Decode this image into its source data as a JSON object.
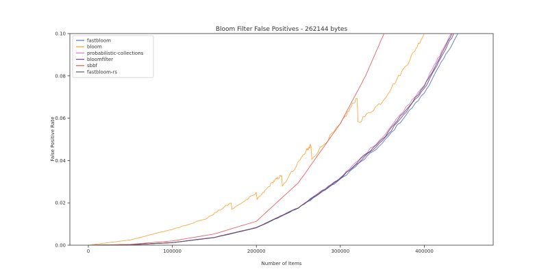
{
  "chart_data": {
    "type": "line",
    "title": "Bloom Filter False Positives - 262144 bytes",
    "xlabel": "Number of Items",
    "ylabel": "False Positive Rate",
    "xlim": [
      -22000,
      482000
    ],
    "ylim": [
      0,
      0.1
    ],
    "xticks": [
      0,
      100000,
      200000,
      300000,
      400000
    ],
    "yticks": [
      0.0,
      0.02,
      0.04,
      0.06,
      0.08,
      0.1
    ],
    "xtick_labels": [
      "0",
      "100000",
      "200000",
      "300000",
      "400000"
    ],
    "ytick_labels": [
      "0.00",
      "0.02",
      "0.04",
      "0.06",
      "0.08",
      "0.10"
    ],
    "grid": false,
    "legend_position": "top-left",
    "series": [
      {
        "name": "fastbloom",
        "color": "#4e79c4",
        "x": [
          0,
          50000,
          100000,
          150000,
          200000,
          250000,
          300000,
          350000,
          400000,
          440000
        ],
        "y": [
          0,
          0.0002,
          0.0012,
          0.0036,
          0.0082,
          0.0175,
          0.031,
          0.048,
          0.072,
          0.1
        ]
      },
      {
        "name": "bloom",
        "color": "#ff9f2a",
        "x": [
          0,
          50000,
          100000,
          140000,
          170000,
          171000,
          200000,
          201000,
          220000,
          230000,
          231000,
          260000,
          265000,
          266000,
          300000,
          320000,
          321000,
          350000,
          380000,
          400000
        ],
        "y": [
          0,
          0.0025,
          0.0075,
          0.0125,
          0.02,
          0.017,
          0.0245,
          0.0215,
          0.03,
          0.033,
          0.028,
          0.045,
          0.047,
          0.041,
          0.057,
          0.07,
          0.058,
          0.068,
          0.086,
          0.1
        ]
      },
      {
        "name": "probabilistic-collections",
        "color": "#e377c2",
        "x": [
          0,
          50000,
          100000,
          150000,
          200000,
          250000,
          300000,
          350000,
          400000,
          432000
        ],
        "y": [
          0,
          0.0002,
          0.0012,
          0.0037,
          0.0084,
          0.0178,
          0.0318,
          0.051,
          0.076,
          0.1
        ]
      },
      {
        "name": "bloomfilter",
        "color": "#7b3db8",
        "x": [
          0,
          50000,
          100000,
          150000,
          200000,
          250000,
          300000,
          350000,
          400000,
          435000
        ],
        "y": [
          0,
          0.0002,
          0.0012,
          0.0037,
          0.0083,
          0.0177,
          0.0315,
          0.049,
          0.074,
          0.1
        ]
      },
      {
        "name": "sbbf",
        "color": "#ee4d4d",
        "x": [
          0,
          50000,
          100000,
          150000,
          200000,
          250000,
          300000,
          330000,
          352000
        ],
        "y": [
          0,
          0.0004,
          0.002,
          0.0053,
          0.0113,
          0.0295,
          0.0575,
          0.08,
          0.1
        ]
      },
      {
        "name": "fastbloom-rs",
        "color": "#5a5a5a",
        "x": [
          0,
          50000,
          100000,
          150000,
          200000,
          250000,
          300000,
          350000,
          400000,
          433000
        ],
        "y": [
          0,
          0.0002,
          0.0012,
          0.0036,
          0.0082,
          0.0176,
          0.0315,
          0.05,
          0.075,
          0.1
        ]
      }
    ]
  }
}
